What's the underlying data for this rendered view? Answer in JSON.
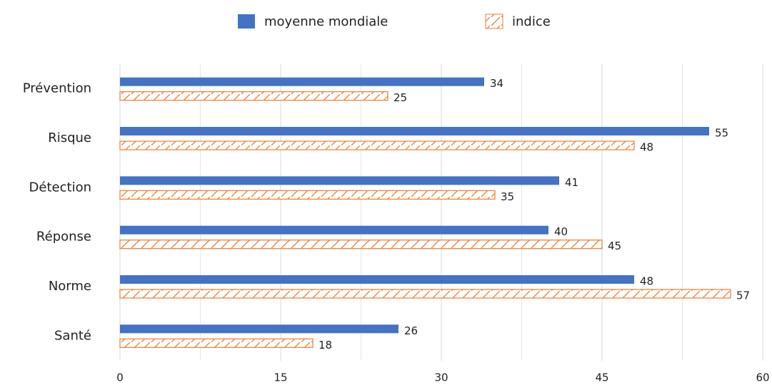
{
  "chart_data": {
    "type": "hbar",
    "categories": [
      "Prévention",
      "Risque",
      "Détection",
      "Réponse",
      "Norme",
      "Santé"
    ],
    "series": [
      {
        "name": "moyenne mondiale",
        "color": "#4472c4",
        "values": [
          34,
          55,
          41,
          40,
          48,
          26
        ]
      },
      {
        "name": "indice",
        "color": "#ed7d31",
        "hatch": true,
        "values": [
          25,
          48,
          35,
          45,
          57,
          18
        ]
      }
    ],
    "xlim": [
      0,
      60
    ],
    "xticks": [
      0,
      15,
      30,
      45,
      60
    ],
    "grid": true,
    "minor_grid": true,
    "legend": "top"
  }
}
